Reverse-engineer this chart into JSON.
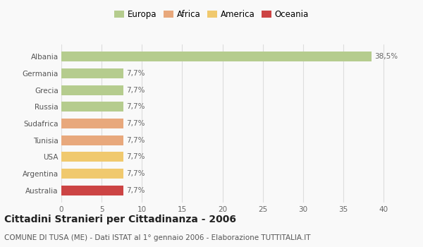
{
  "categories": [
    "Albania",
    "Germania",
    "Grecia",
    "Russia",
    "Sudafrica",
    "Tunisia",
    "USA",
    "Argentina",
    "Australia"
  ],
  "values": [
    38.5,
    7.7,
    7.7,
    7.7,
    7.7,
    7.7,
    7.7,
    7.7,
    7.7
  ],
  "colors": [
    "#b5cc8e",
    "#b5cc8e",
    "#b5cc8e",
    "#b5cc8e",
    "#e8a87c",
    "#e8a87c",
    "#f0c96e",
    "#f0c96e",
    "#cc4444"
  ],
  "labels": [
    "38,5%",
    "7,7%",
    "7,7%",
    "7,7%",
    "7,7%",
    "7,7%",
    "7,7%",
    "7,7%",
    "7,7%"
  ],
  "xlim": [
    0,
    42
  ],
  "xticks": [
    0,
    5,
    10,
    15,
    20,
    25,
    30,
    35,
    40
  ],
  "legend_labels": [
    "Europa",
    "Africa",
    "America",
    "Oceania"
  ],
  "legend_colors": [
    "#b5cc8e",
    "#e8a87c",
    "#f0c96e",
    "#cc4444"
  ],
  "title": "Cittadini Stranieri per Cittadinanza - 2006",
  "subtitle": "COMUNE DI TUSA (ME) - Dati ISTAT al 1° gennaio 2006 - Elaborazione TUTTITALIA.IT",
  "background_color": "#f9f9f9",
  "grid_color": "#dddddd",
  "bar_height": 0.6,
  "title_fontsize": 10,
  "subtitle_fontsize": 7.5,
  "label_fontsize": 7.5,
  "tick_fontsize": 7.5,
  "legend_fontsize": 8.5
}
